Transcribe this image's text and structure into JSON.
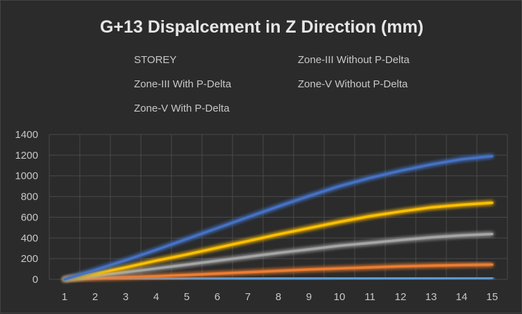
{
  "chart_data": {
    "type": "line",
    "title": "G+13 Dispalcement in Z Direction (mm)",
    "xlabel": "",
    "ylabel": "",
    "categories": [
      "1",
      "2",
      "3",
      "4",
      "5",
      "6",
      "7",
      "8",
      "9",
      "10",
      "11",
      "12",
      "13",
      "14",
      "15"
    ],
    "ylim": [
      0,
      1400
    ],
    "yticks": [
      0,
      200,
      400,
      600,
      800,
      1000,
      1200,
      1400
    ],
    "grid": true,
    "legend_position": "top",
    "series": [
      {
        "name": "STOREY",
        "color": "#5b9bd5",
        "values": [
          1,
          2,
          3,
          4,
          5,
          6,
          7,
          8,
          9,
          10,
          11,
          12,
          13,
          14,
          15
        ]
      },
      {
        "name": "Zone-III Without P-Delta",
        "color": "#ed7d31",
        "values": [
          0,
          10,
          20,
          30,
          42,
          55,
          68,
          82,
          95,
          105,
          115,
          125,
          132,
          138,
          143
        ]
      },
      {
        "name": "Zone-III With P-Delta",
        "color": "#a5a5a5",
        "values": [
          0,
          35,
          68,
          105,
          142,
          180,
          218,
          255,
          290,
          325,
          352,
          380,
          405,
          425,
          438
        ]
      },
      {
        "name": "Zone-V Without P-Delta",
        "color": "#ffc000",
        "values": [
          0,
          55,
          115,
          180,
          240,
          305,
          370,
          435,
          495,
          555,
          610,
          655,
          695,
          720,
          740
        ]
      },
      {
        "name": "Zone-V With P-Delta",
        "color": "#4472c4",
        "values": [
          0,
          90,
          185,
          285,
          390,
          495,
          600,
          705,
          805,
          900,
          980,
          1050,
          1110,
          1160,
          1190
        ]
      }
    ]
  }
}
